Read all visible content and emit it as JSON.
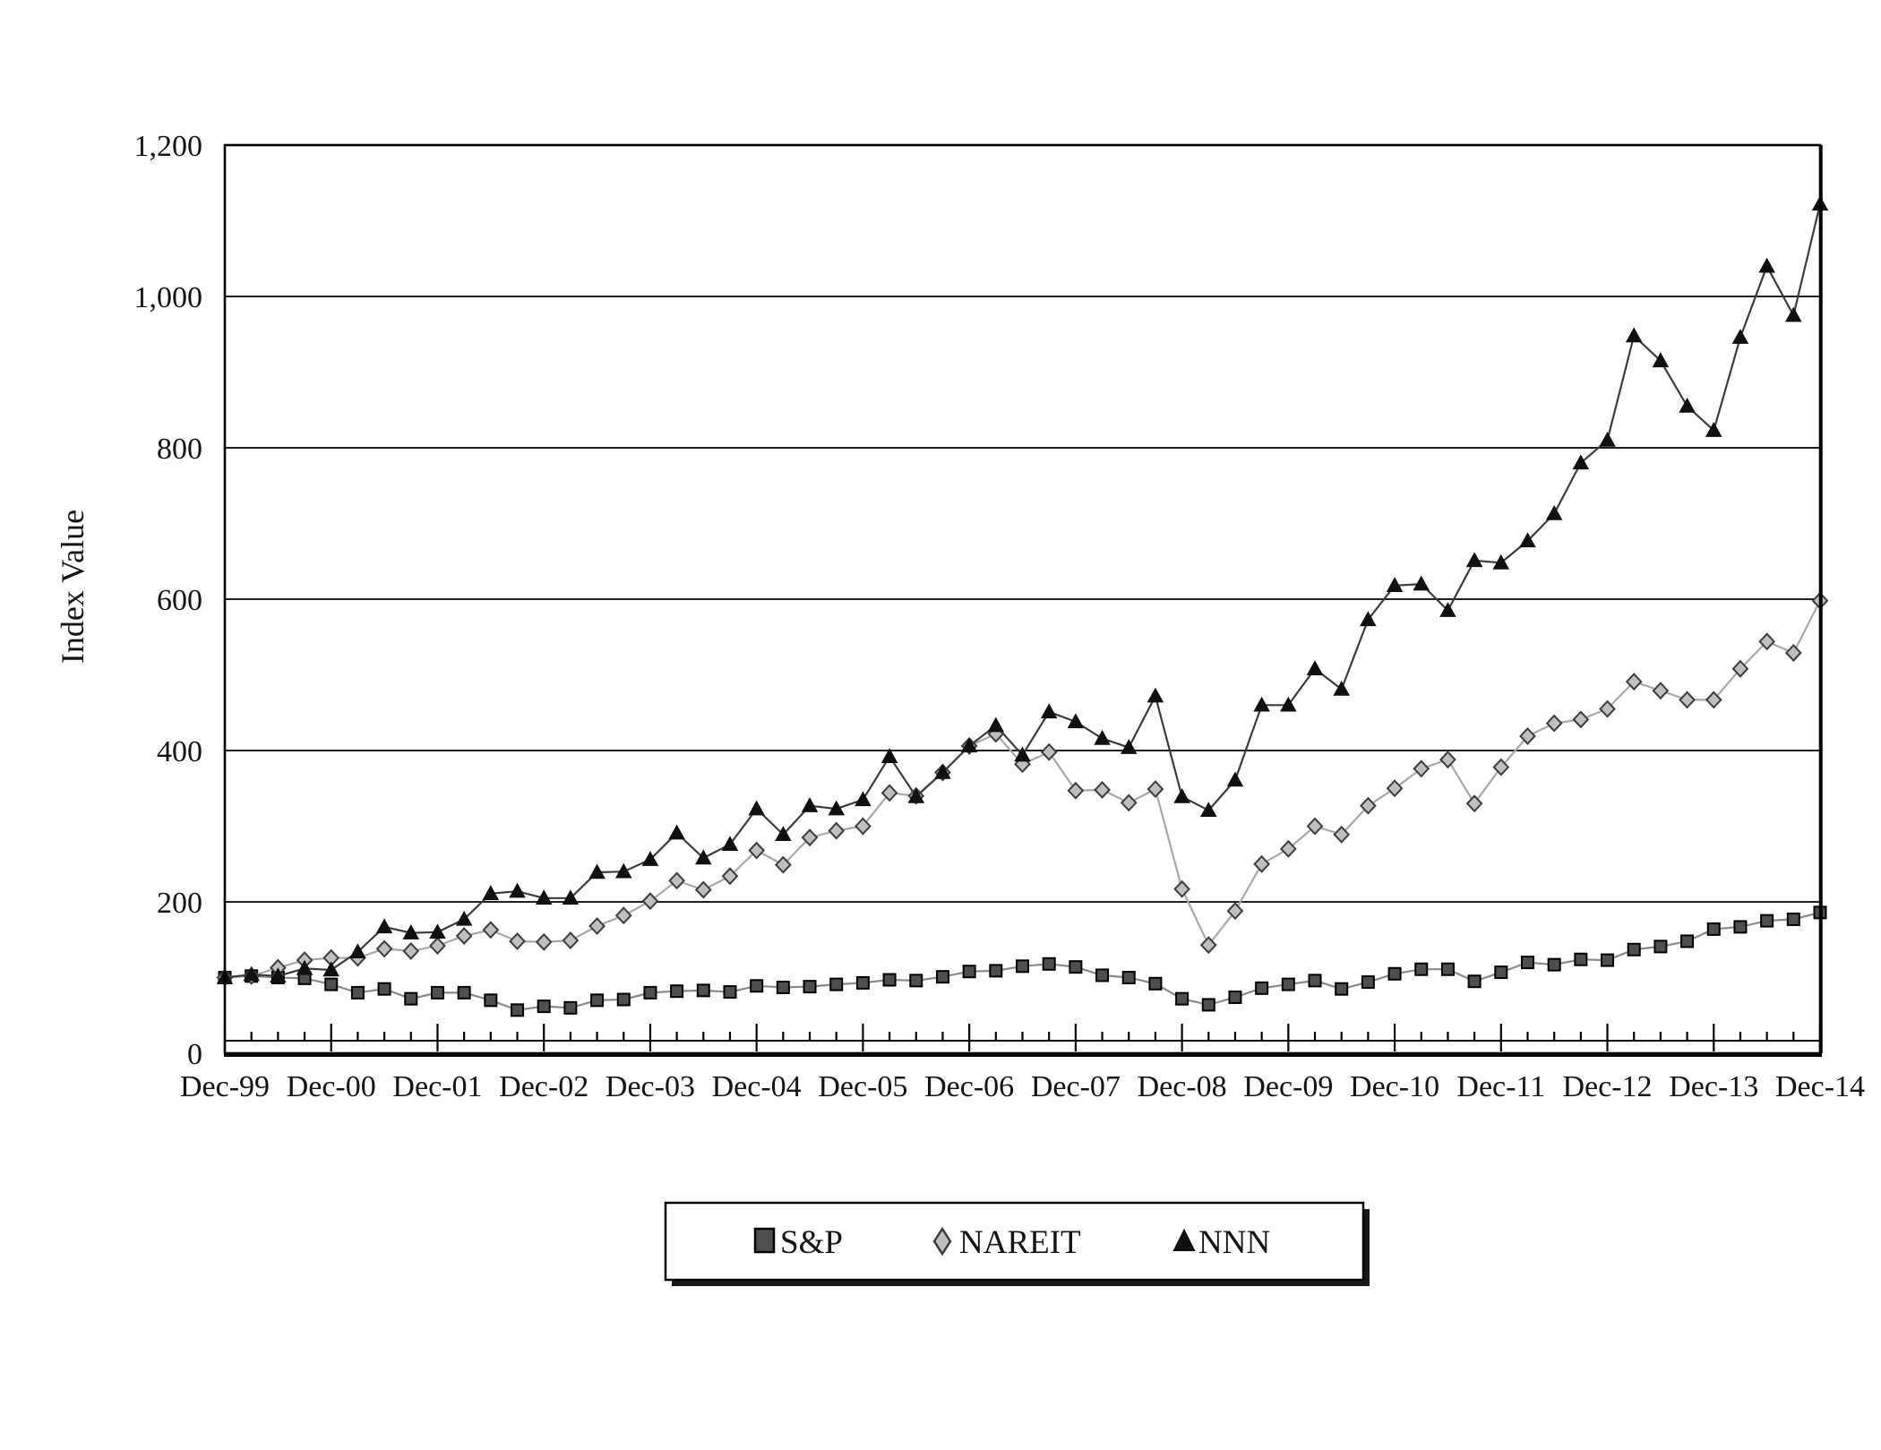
{
  "chart_data": {
    "type": "line",
    "title": "",
    "ylabel": "Index Value",
    "xlabel": "",
    "ylim": [
      0,
      1200
    ],
    "y_tick_step": 200,
    "y_tick_labels": [
      "0",
      "200",
      "400",
      "600",
      "800",
      "1,000",
      "1,200"
    ],
    "x_tick_labels": [
      "Dec-99",
      "Dec-00",
      "Dec-01",
      "Dec-02",
      "Dec-03",
      "Dec-04",
      "Dec-05",
      "Dec-06",
      "Dec-07",
      "Dec-08",
      "Dec-09",
      "Dec-10",
      "Dec-11",
      "Dec-12",
      "Dec-13",
      "Dec-14"
    ],
    "x_frequency": "quarterly",
    "points_per_year": 4,
    "grid": "horizontal",
    "legend_position": "bottom-center",
    "colors": {
      "grid": "#000000",
      "frame": "#000000",
      "background": "#ffffff"
    },
    "series": [
      {
        "name": "S&P",
        "marker": "square",
        "marker_fill": "#4f4f4f",
        "marker_stroke": "#000000",
        "line_color": "#8a8a8a",
        "values": [
          100,
          102,
          100,
          99,
          91,
          80,
          85,
          72,
          80,
          80,
          70,
          57,
          62,
          60,
          70,
          71,
          80,
          82,
          83,
          81,
          89,
          87,
          88,
          91,
          93,
          97,
          96,
          101,
          108,
          109,
          115,
          118,
          114,
          103,
          100,
          92,
          72,
          64,
          74,
          86,
          91,
          96,
          85,
          94,
          105,
          111,
          111,
          95,
          107,
          120,
          117,
          124,
          123,
          137,
          141,
          148,
          164,
          167,
          175,
          177,
          186
        ]
      },
      {
        "name": "NAREIT",
        "marker": "diamond",
        "marker_fill": "#bfbfbf",
        "marker_stroke": "#3c3c3c",
        "line_color": "#a8a8a8",
        "values": [
          100,
          102,
          113,
          123,
          126,
          126,
          138,
          135,
          142,
          155,
          163,
          148,
          147,
          149,
          168,
          182,
          201,
          228,
          216,
          234,
          268,
          249,
          285,
          294,
          300,
          344,
          340,
          371,
          406,
          422,
          382,
          398,
          347,
          348,
          331,
          349,
          217,
          143,
          188,
          250,
          270,
          300,
          289,
          327,
          350,
          376,
          388,
          330,
          378,
          419,
          436,
          441,
          455,
          491,
          479,
          467,
          467,
          508,
          544,
          529,
          598
        ]
      },
      {
        "name": "NNN",
        "marker": "triangle",
        "marker_fill": "#101010",
        "marker_stroke": "#101010",
        "line_color": "#3c3c3c",
        "values": [
          100,
          104,
          102,
          112,
          110,
          134,
          167,
          159,
          160,
          177,
          211,
          214,
          205,
          205,
          239,
          240,
          256,
          291,
          258,
          276,
          323,
          289,
          327,
          323,
          335,
          392,
          339,
          371,
          406,
          433,
          394,
          451,
          438,
          416,
          404,
          472,
          339,
          321,
          361,
          460,
          460,
          508,
          481,
          573,
          618,
          620,
          585,
          651,
          648,
          677,
          713,
          780,
          810,
          948,
          915,
          855,
          823,
          946,
          1040,
          975,
          1122
        ]
      }
    ]
  }
}
